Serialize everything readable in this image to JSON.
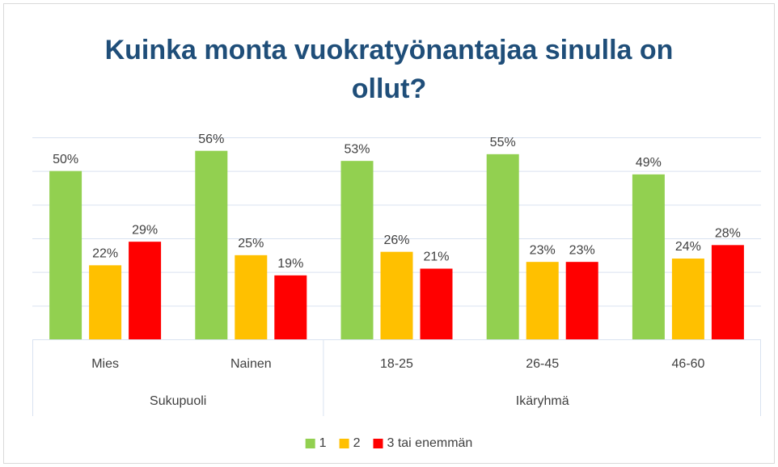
{
  "chart_data": {
    "type": "bar",
    "title": "Kuinka monta vuokratyönantajaa sinulla on ollut?",
    "groups": [
      {
        "name": "Sukupuoli",
        "categories": [
          "Mies",
          "Nainen"
        ]
      },
      {
        "name": "Ikäryhmä",
        "categories": [
          "18-25",
          "26-45",
          "46-60"
        ]
      }
    ],
    "series": [
      {
        "name": "1",
        "color": "#92d050",
        "values": [
          50,
          56,
          53,
          55,
          49
        ],
        "value_labels": [
          "50%",
          "56%",
          "53%",
          "55%",
          "49%"
        ]
      },
      {
        "name": "2",
        "color": "#ffc000",
        "values": [
          22,
          25,
          26,
          23,
          24
        ],
        "value_labels": [
          "22%",
          "25%",
          "26%",
          "23%",
          "24%"
        ]
      },
      {
        "name": "3 tai enemmän",
        "color": "#ff0000",
        "values": [
          29,
          19,
          21,
          23,
          28
        ],
        "value_labels": [
          "29%",
          "19%",
          "21%",
          "23%",
          "28%"
        ]
      }
    ],
    "ylim": [
      0,
      60
    ],
    "yticks": [
      0,
      10,
      20,
      30,
      40,
      50,
      60
    ],
    "grid": true,
    "legend": "bottom"
  }
}
